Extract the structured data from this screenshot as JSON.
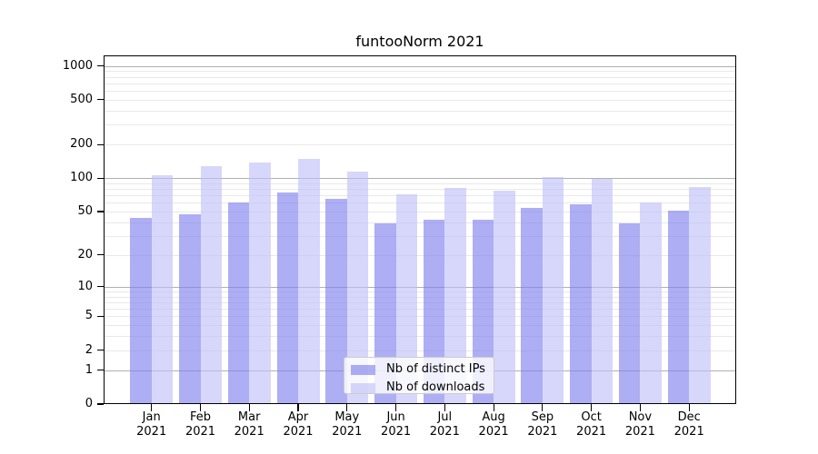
{
  "title": "funtooNorm 2021",
  "chart_data": {
    "type": "bar",
    "title": "funtooNorm 2021",
    "categories": [
      "Jan 2021",
      "Feb 2021",
      "Mar 2021",
      "Apr 2021",
      "May 2021",
      "Jun 2021",
      "Jul 2021",
      "Aug 2021",
      "Sep 2021",
      "Oct 2021",
      "Nov 2021",
      "Dec 2021"
    ],
    "x_ticks": [
      {
        "line1": "Jan",
        "line2": "2021"
      },
      {
        "line1": "Feb",
        "line2": "2021"
      },
      {
        "line1": "Mar",
        "line2": "2021"
      },
      {
        "line1": "Apr",
        "line2": "2021"
      },
      {
        "line1": "May",
        "line2": "2021"
      },
      {
        "line1": "Jun",
        "line2": "2021"
      },
      {
        "line1": "Jul",
        "line2": "2021"
      },
      {
        "line1": "Aug",
        "line2": "2021"
      },
      {
        "line1": "Sep",
        "line2": "2021"
      },
      {
        "line1": "Oct",
        "line2": "2021"
      },
      {
        "line1": "Nov",
        "line2": "2021"
      },
      {
        "line1": "Dec",
        "line2": "2021"
      }
    ],
    "series": [
      {
        "name": "Nb of distinct IPs",
        "key": "distinct-ips",
        "color": "rgba(125,125,238,0.62)",
        "color_on_white": "#aeaef6",
        "values": [
          44,
          47,
          61,
          74,
          65,
          39,
          42,
          42,
          54,
          58,
          39,
          51
        ]
      },
      {
        "name": "Nb of downloads",
        "key": "downloads",
        "color": "rgba(190,190,248,0.62)",
        "color_on_white": "#d7d7fb",
        "values": [
          107,
          129,
          138,
          149,
          114,
          71,
          81,
          77,
          102,
          98,
          61,
          84
        ]
      }
    ],
    "xlabel": "",
    "ylabel": "",
    "y_scale": "log10(1+v)",
    "y_ticks": [
      1000,
      500,
      200,
      100,
      50,
      20,
      10,
      5,
      2,
      1,
      0
    ],
    "ylim": [
      0,
      1240
    ],
    "grid": "horizontal log minor+major",
    "legend_position": "inside, lower center"
  },
  "colors": {
    "bar_distinct_ips": "rgba(125,125,238,0.62)",
    "bar_downloads": "rgba(190,190,248,0.62)",
    "grid_major": "#b0b0b0",
    "grid_minor": "#e9e9e9",
    "axis": "#000000",
    "legend_border": "#cccccc",
    "background": "#ffffff"
  }
}
